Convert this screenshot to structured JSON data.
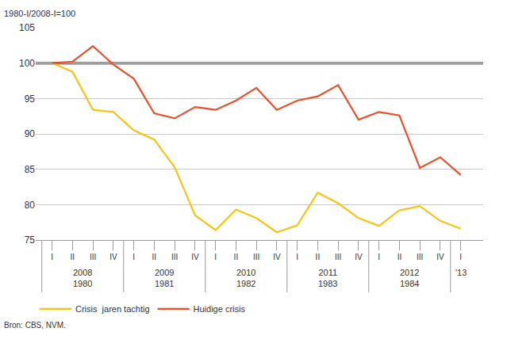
{
  "chart_data": {
    "type": "line",
    "y_label": "1980-I/2008-I=100",
    "categories": [
      "I",
      "II",
      "III",
      "IV",
      "I",
      "II",
      "III",
      "IV",
      "I",
      "II",
      "III",
      "IV",
      "I",
      "II",
      "III",
      "IV",
      "I",
      "II",
      "III",
      "IV",
      "I"
    ],
    "category_groups": [
      {
        "labels": [
          "2008",
          "1980"
        ],
        "size": 4
      },
      {
        "labels": [
          "2009",
          "1981"
        ],
        "size": 4
      },
      {
        "labels": [
          "2010",
          "1982"
        ],
        "size": 4
      },
      {
        "labels": [
          "2011",
          "1983"
        ],
        "size": 4
      },
      {
        "labels": [
          "2012",
          "1984"
        ],
        "size": 4
      },
      {
        "labels": [
          "'13"
        ],
        "size": 1
      }
    ],
    "series": [
      {
        "name": "Crisis  jaren tachtig",
        "color": "#f5c414",
        "values": [
          100,
          98.8,
          93.4,
          93.1,
          90.5,
          89.2,
          85.3,
          78.5,
          76.4,
          79.3,
          78.1,
          76.1,
          77.1,
          81.7,
          80.2,
          78.1,
          77.0,
          79.2,
          79.8,
          77.7,
          76.6
        ]
      },
      {
        "name": "Huidige crisis",
        "color": "#e8502a",
        "values": [
          100,
          100.2,
          102.4,
          99.8,
          97.8,
          92.9,
          92.2,
          93.8,
          93.4,
          94.7,
          96.5,
          93.4,
          94.7,
          95.3,
          96.9,
          92.0,
          93.1,
          92.6,
          85.2,
          86.7,
          84.2
        ]
      }
    ],
    "ylim": [
      75,
      105
    ],
    "yticks": [
      75,
      80,
      85,
      90,
      95,
      100,
      105
    ],
    "grid": true,
    "legend": "bottom left",
    "reference_line": {
      "value": 100,
      "color": "#808080"
    },
    "source": "Bron: CBS, NVM."
  }
}
